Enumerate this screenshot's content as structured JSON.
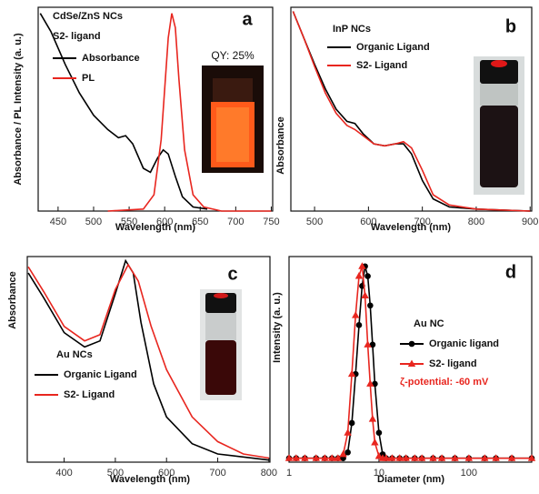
{
  "chart_data": [
    {
      "type": "line",
      "panel_label": "a",
      "title": "CdSe/ZnS NCs",
      "subtitle": "S2- ligand",
      "annotation": "QY: 25%",
      "x_label": "Wavelength (nm)",
      "y_label": "Absorbance / PL Intensity (a. u.)",
      "xlim": [
        422,
        752
      ],
      "xticks": [
        450,
        500,
        550,
        600,
        650,
        700,
        750
      ],
      "ylim": [
        0,
        1
      ],
      "series": [
        {
          "name": "Absorbance",
          "color": "#000000",
          "x": [
            425,
            440,
            460,
            480,
            500,
            520,
            535,
            545,
            555,
            570,
            580,
            590,
            598,
            605,
            615,
            625,
            640,
            660
          ],
          "values": [
            0.97,
            0.88,
            0.72,
            0.58,
            0.47,
            0.4,
            0.36,
            0.37,
            0.33,
            0.21,
            0.19,
            0.26,
            0.3,
            0.28,
            0.17,
            0.07,
            0.02,
            0.01
          ]
        },
        {
          "name": "PL",
          "color": "#e8261f",
          "x": [
            520,
            570,
            585,
            595,
            600,
            605,
            610,
            615,
            620,
            628,
            640,
            655,
            680,
            750
          ],
          "values": [
            0,
            0.01,
            0.08,
            0.35,
            0.6,
            0.85,
            0.97,
            0.9,
            0.65,
            0.3,
            0.08,
            0.02,
            0,
            0
          ]
        }
      ]
    },
    {
      "type": "line",
      "panel_label": "b",
      "title": "InP NCs",
      "x_label": "Wavelength (nm)",
      "y_label": "Absorbance",
      "xlim": [
        456,
        903
      ],
      "xticks": [
        500,
        600,
        700,
        800,
        900
      ],
      "ylim": [
        0,
        1
      ],
      "series": [
        {
          "name": "Organic Ligand",
          "color": "#000000",
          "x": [
            460,
            480,
            500,
            520,
            540,
            560,
            575,
            590,
            610,
            630,
            650,
            665,
            680,
            700,
            720,
            750,
            800,
            900
          ],
          "values": [
            0.98,
            0.85,
            0.72,
            0.6,
            0.5,
            0.44,
            0.43,
            0.38,
            0.33,
            0.32,
            0.33,
            0.33,
            0.28,
            0.15,
            0.06,
            0.02,
            0.01,
            0
          ]
        },
        {
          "name": "S2- Ligand",
          "color": "#e8261f",
          "x": [
            460,
            480,
            500,
            520,
            540,
            560,
            575,
            590,
            610,
            630,
            650,
            665,
            680,
            700,
            720,
            750,
            800,
            900
          ],
          "values": [
            0.98,
            0.85,
            0.71,
            0.58,
            0.48,
            0.42,
            0.4,
            0.37,
            0.33,
            0.32,
            0.33,
            0.34,
            0.31,
            0.2,
            0.08,
            0.03,
            0.01,
            0
          ]
        }
      ]
    },
    {
      "type": "line",
      "panel_label": "c",
      "title": "Au NCs",
      "x_label": "Wavelength (nm)",
      "y_label": "Absorbance",
      "xlim": [
        328,
        802
      ],
      "xticks": [
        400,
        500,
        600,
        700,
        800
      ],
      "ylim": [
        0,
        1
      ],
      "series": [
        {
          "name": "Organic Ligand",
          "color": "#000000",
          "x": [
            330,
            360,
            400,
            440,
            470,
            500,
            520,
            535,
            550,
            575,
            600,
            650,
            700,
            800
          ],
          "values": [
            0.92,
            0.8,
            0.63,
            0.56,
            0.59,
            0.82,
            0.98,
            0.92,
            0.68,
            0.38,
            0.22,
            0.09,
            0.04,
            0.01
          ]
        },
        {
          "name": "S2- Ligand",
          "color": "#e8261f",
          "x": [
            330,
            360,
            400,
            440,
            470,
            500,
            525,
            545,
            570,
            600,
            650,
            700,
            750,
            800
          ],
          "values": [
            0.95,
            0.83,
            0.66,
            0.59,
            0.62,
            0.84,
            0.96,
            0.88,
            0.66,
            0.45,
            0.22,
            0.1,
            0.04,
            0.02
          ]
        }
      ]
    },
    {
      "type": "line",
      "panel_label": "d",
      "title": "Au NC",
      "annotation": "ζ-potential: -60 mV",
      "xscale": "log",
      "x_label": "Diameter (nm)",
      "y_label": "Intensity (a. u.)",
      "xlim": [
        1,
        500
      ],
      "xticks": [
        1,
        10,
        100
      ],
      "ylim": [
        0,
        1.05
      ],
      "series": [
        {
          "name": "Organic ligand",
          "color": "#000000",
          "marker": "circle",
          "x": [
            1,
            1.2,
            1.5,
            2,
            2.5,
            3,
            3.5,
            4,
            4.5,
            5,
            5.5,
            6,
            6.5,
            7,
            7.5,
            8,
            8.5,
            9,
            10,
            11,
            12,
            14,
            17,
            20,
            25,
            30,
            40,
            50,
            70,
            100,
            150,
            200,
            300,
            500
          ],
          "values": [
            0.02,
            0.02,
            0.02,
            0.02,
            0.02,
            0.02,
            0.02,
            0.02,
            0.05,
            0.2,
            0.45,
            0.7,
            0.9,
            1.0,
            0.95,
            0.8,
            0.6,
            0.4,
            0.15,
            0.04,
            0.02,
            0.02,
            0.02,
            0.02,
            0.02,
            0.02,
            0.02,
            0.02,
            0.02,
            0.02,
            0.02,
            0.02,
            0.02,
            0.02
          ]
        },
        {
          "name": "S2- ligand",
          "color": "#e8261f",
          "marker": "triangle",
          "x": [
            1,
            1.2,
            1.5,
            2,
            2.5,
            3,
            3.5,
            4,
            4.5,
            5,
            5.5,
            6,
            6.5,
            7,
            7.5,
            8,
            8.5,
            9,
            10,
            11,
            12,
            14,
            17,
            20,
            25,
            30,
            40,
            50,
            70,
            100,
            150,
            200,
            300,
            500
          ],
          "values": [
            0.02,
            0.02,
            0.02,
            0.02,
            0.02,
            0.02,
            0.02,
            0.04,
            0.15,
            0.45,
            0.75,
            0.95,
            1.0,
            0.85,
            0.6,
            0.4,
            0.22,
            0.1,
            0.03,
            0.02,
            0.02,
            0.02,
            0.02,
            0.02,
            0.02,
            0.02,
            0.02,
            0.02,
            0.02,
            0.02,
            0.02,
            0.02,
            0.02,
            0.02
          ]
        }
      ]
    }
  ]
}
